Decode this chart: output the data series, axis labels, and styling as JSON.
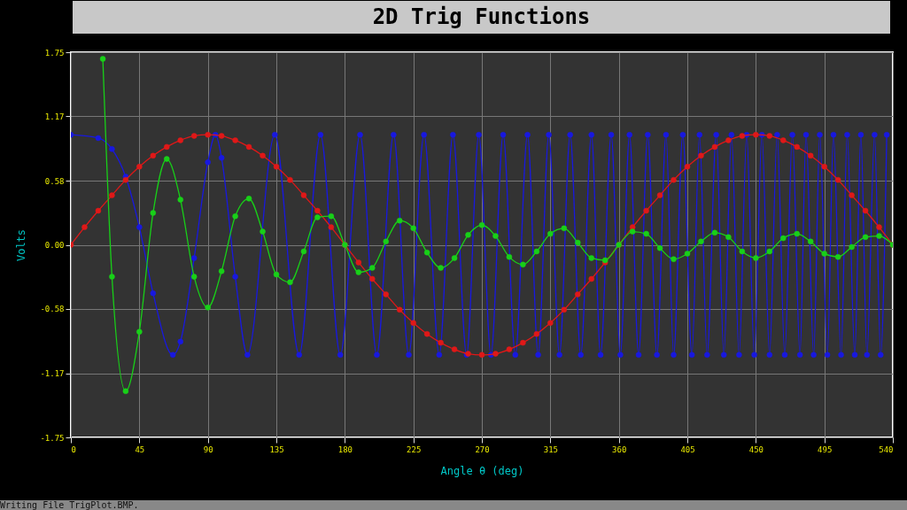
{
  "chart_data": {
    "type": "line",
    "title": "2D Trig Functions",
    "xlabel": "Angle θ (deg)",
    "ylabel": "Volts",
    "annotations": [
      "Writing File TrigPlot.BMP."
    ],
    "x": [
      0,
      9,
      18,
      27,
      36,
      45,
      54,
      63,
      72,
      81,
      90,
      99,
      108,
      117,
      126,
      135,
      144,
      153,
      162,
      171,
      180,
      189,
      198,
      207,
      216,
      225,
      234,
      243,
      252,
      261,
      270,
      279,
      288,
      297,
      306,
      315,
      324,
      333,
      342,
      351,
      360,
      369,
      378,
      387,
      396,
      405,
      414,
      423,
      432,
      441,
      450,
      459,
      468,
      477,
      486,
      495,
      504,
      513,
      522,
      531,
      540
    ],
    "series": [
      {
        "color": "#1818e0",
        "x": [
          0,
          18,
          27,
          36,
          45,
          54,
          67,
          72,
          81,
          90,
          95,
          99,
          108,
          116,
          134,
          150,
          164,
          177,
          190,
          201,
          212,
          222,
          232,
          242,
          251,
          260,
          268,
          276,
          284,
          292,
          300,
          307,
          314,
          321,
          328,
          335,
          342,
          348,
          355,
          361,
          367,
          373,
          379,
          385,
          391,
          396,
          402,
          408,
          413,
          418,
          424,
          429,
          434,
          439,
          444,
          449,
          454,
          459,
          464,
          469,
          474,
          479,
          483,
          488,
          492,
          497,
          501,
          506,
          510,
          515,
          519,
          523,
          528,
          532,
          536
        ],
        "values": [
          1,
          0.97,
          0.87,
          0.62,
          0.16,
          -0.44,
          -1,
          -0.88,
          -0.12,
          0.75,
          1,
          0.79,
          -0.29,
          -1,
          1,
          -1,
          1,
          -1,
          1,
          -1,
          1,
          -1,
          1,
          -1,
          1,
          -1,
          1,
          -1,
          1,
          -1,
          1,
          -1,
          1,
          -1,
          1,
          -1,
          1,
          -1,
          1,
          -1,
          1,
          -1,
          1,
          -1,
          1,
          -1,
          1,
          -1,
          1,
          -1,
          1,
          -1,
          1,
          -1,
          1,
          -1,
          1,
          -1,
          1,
          -1,
          1,
          -1,
          1,
          -1,
          1,
          -1,
          1,
          -1,
          1,
          -1,
          1,
          -1,
          1,
          -1,
          1
        ]
      },
      {
        "color": "#e01818",
        "values": [
          0,
          0.16,
          0.31,
          0.45,
          0.59,
          0.71,
          0.81,
          0.89,
          0.95,
          0.99,
          1,
          0.99,
          0.95,
          0.89,
          0.81,
          0.71,
          0.59,
          0.45,
          0.31,
          0.16,
          0,
          -0.16,
          -0.31,
          -0.45,
          -0.59,
          -0.71,
          -0.81,
          -0.89,
          -0.95,
          -0.99,
          -1,
          -0.99,
          -0.95,
          -0.89,
          -0.81,
          -0.71,
          -0.59,
          -0.45,
          -0.31,
          -0.16,
          0,
          0.16,
          0.31,
          0.45,
          0.59,
          0.71,
          0.81,
          0.89,
          0.95,
          0.99,
          1,
          0.99,
          0.95,
          0.89,
          0.81,
          0.71,
          0.59,
          0.45,
          0.31,
          0.16,
          0
        ]
      },
      {
        "color": "#18d018",
        "x": [
          21,
          27,
          36,
          45,
          54,
          63,
          72,
          81,
          90,
          99,
          108,
          117,
          126,
          135,
          144,
          153,
          162,
          171,
          180,
          189,
          198,
          207,
          216,
          225,
          234,
          243,
          252,
          261,
          270,
          279,
          288,
          297,
          306,
          315,
          324,
          333,
          342,
          351,
          360,
          369,
          378,
          387,
          396,
          405,
          414,
          423,
          432,
          441,
          450,
          459,
          468,
          477,
          486,
          495,
          504,
          513,
          522,
          531,
          540
        ],
        "values": [
          1.69,
          -0.29,
          -1.33,
          -0.79,
          0.29,
          0.78,
          0.41,
          -0.29,
          -0.57,
          -0.24,
          0.26,
          0.42,
          0.12,
          -0.27,
          -0.34,
          -0.06,
          0.25,
          0.26,
          0,
          -0.25,
          -0.21,
          0.03,
          0.22,
          0.15,
          -0.07,
          -0.21,
          -0.12,
          0.09,
          0.18,
          0.08,
          -0.11,
          -0.18,
          -0.06,
          0.1,
          0.15,
          0.02,
          -0.12,
          -0.14,
          0,
          0.12,
          0.1,
          -0.03,
          -0.13,
          -0.08,
          0.03,
          0.11,
          0.07,
          -0.06,
          -0.12,
          -0.06,
          0.06,
          0.1,
          0.03,
          -0.08,
          -0.11,
          -0.02,
          0.07,
          0.08,
          0
        ]
      }
    ],
    "xlim": [
      0,
      540
    ],
    "xticks": [
      0,
      45,
      90,
      135,
      180,
      225,
      270,
      315,
      360,
      405,
      450,
      495,
      540
    ],
    "ylim": [
      -1.75,
      1.75
    ],
    "yticks": [
      -1.75,
      -1.17,
      -0.58,
      {
        "value": 0,
        "label": "0.00"
      },
      0.58,
      1.17,
      1.75
    ],
    "grid": true,
    "marker": "circle",
    "line_style": "solid"
  }
}
